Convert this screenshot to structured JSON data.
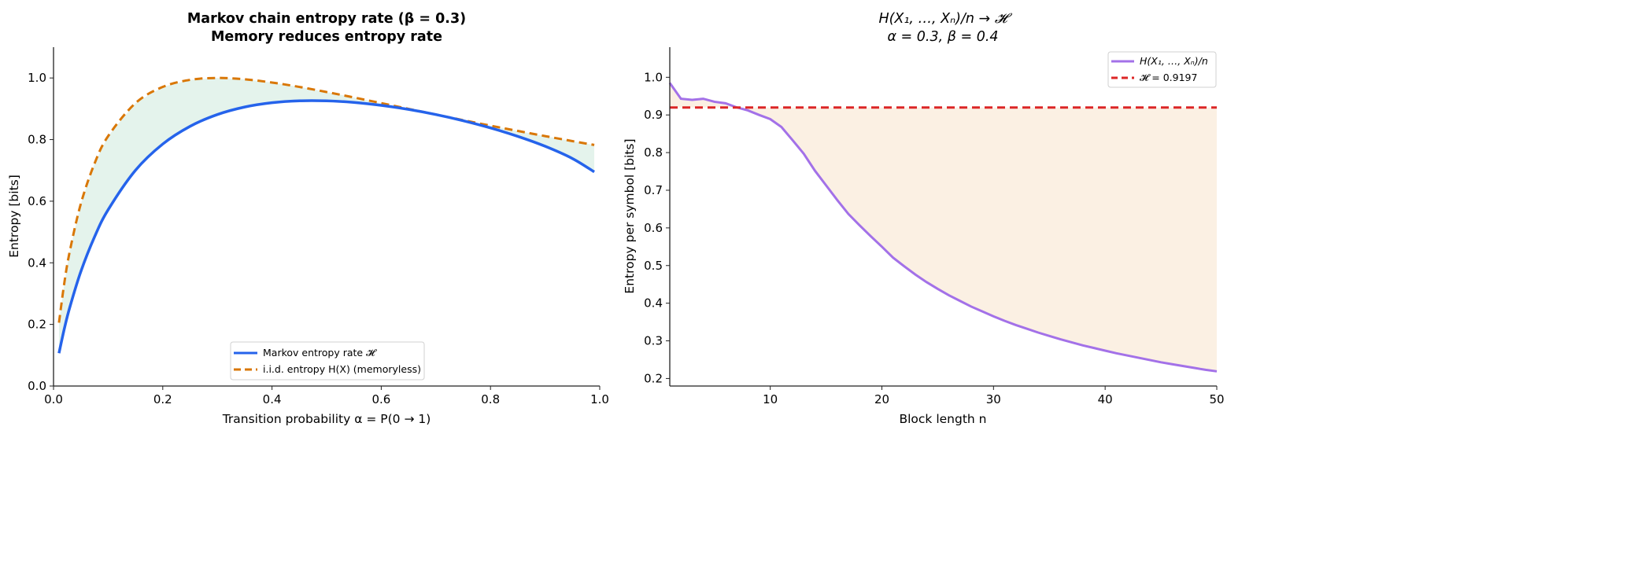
{
  "chart_data": [
    {
      "type": "line",
      "title": "Markov chain entropy rate (β = 0.3)",
      "subtitle": "Memory reduces entropy rate",
      "xlabel": "Transition probability α = P(0 → 1)",
      "ylabel": "Entropy [bits]",
      "xlim": [
        0.0,
        1.0
      ],
      "ylim": [
        0.0,
        1.1
      ],
      "xticks": [
        "0.0",
        "0.2",
        "0.4",
        "0.6",
        "0.8",
        "1.0"
      ],
      "yticks": [
        "0.0",
        "0.2",
        "0.4",
        "0.6",
        "0.8",
        "1.0"
      ],
      "grid": false,
      "legend_placement": "lower-center",
      "fill_between": {
        "color": "#e4f3ec"
      },
      "x": [
        0.01,
        0.02,
        0.03,
        0.05,
        0.075,
        0.1,
        0.15,
        0.2,
        0.25,
        0.3,
        0.35,
        0.4,
        0.45,
        0.5,
        0.55,
        0.6,
        0.65,
        0.7,
        0.75,
        0.8,
        0.85,
        0.9,
        0.95,
        0.99
      ],
      "series": [
        {
          "name": "Markov entropy rate 𝓗",
          "color": "#2563eb",
          "style": "solid",
          "values": [
            0.1066,
            0.1877,
            0.2568,
            0.3714,
            0.4837,
            0.5721,
            0.7003,
            0.7856,
            0.8431,
            0.8813,
            0.9057,
            0.9197,
            0.9259,
            0.9258,
            0.9207,
            0.9112,
            0.898,
            0.8813,
            0.8613,
            0.8379,
            0.8105,
            0.7783,
            0.7385,
            0.6951
          ]
        },
        {
          "name": "i.i.d. entropy H(X) (memoryless)",
          "color": "#d97706",
          "style": "dashed",
          "values": [
            0.2056,
            0.3373,
            0.4395,
            0.5917,
            0.7219,
            0.8113,
            0.9183,
            0.971,
            0.994,
            1.0,
            0.9957,
            0.9852,
            0.971,
            0.9544,
            0.9367,
            0.9183,
            0.8998,
            0.8813,
            0.8631,
            0.8452,
            0.8281,
            0.8113,
            0.795,
            0.7825
          ]
        }
      ]
    },
    {
      "type": "line",
      "title": "H(X₁, …, Xₙ)/n → 𝓗",
      "subtitle": "α = 0.3, β = 0.4",
      "xlabel": "Block length n",
      "ylabel": "Entropy per symbol [bits]",
      "xlim": [
        1,
        50
      ],
      "ylim": [
        0.18,
        1.08
      ],
      "xticks": [
        "10",
        "20",
        "30",
        "40",
        "50"
      ],
      "yticks": [
        "0.2",
        "0.3",
        "0.4",
        "0.5",
        "0.6",
        "0.7",
        "0.8",
        "0.9",
        "1.0"
      ],
      "grid": false,
      "legend_placement": "top-right",
      "fill_between": {
        "color": "#fbf0e3"
      },
      "x": [
        1,
        2,
        3,
        4,
        5,
        6,
        7,
        8,
        9,
        10,
        11,
        12,
        13,
        14,
        15,
        16,
        17,
        18,
        19,
        20,
        21,
        22,
        23,
        24,
        25,
        26,
        27,
        28,
        29,
        30,
        31,
        32,
        33,
        34,
        35,
        36,
        37,
        38,
        39,
        40,
        41,
        42,
        43,
        44,
        45,
        46,
        47,
        48,
        49,
        50
      ],
      "series": [
        {
          "name": "H(X₁, …, Xₙ)/n",
          "color": "#a371e8",
          "style": "solid",
          "values": [
            0.985,
            0.943,
            0.94,
            0.943,
            0.935,
            0.931,
            0.92,
            0.912,
            0.9,
            0.889,
            0.868,
            0.833,
            0.797,
            0.752,
            0.713,
            0.674,
            0.637,
            0.607,
            0.578,
            0.55,
            0.521,
            0.498,
            0.476,
            0.456,
            0.438,
            0.421,
            0.406,
            0.391,
            0.378,
            0.365,
            0.353,
            0.342,
            0.332,
            0.322,
            0.313,
            0.304,
            0.296,
            0.288,
            0.281,
            0.274,
            0.267,
            0.261,
            0.255,
            0.249,
            0.243,
            0.238,
            0.233,
            0.228,
            0.223,
            0.219
          ]
        },
        {
          "name": "𝓗 = 0.9197",
          "color": "#dc2626",
          "style": "dashed",
          "constant": 0.9197
        }
      ]
    }
  ]
}
